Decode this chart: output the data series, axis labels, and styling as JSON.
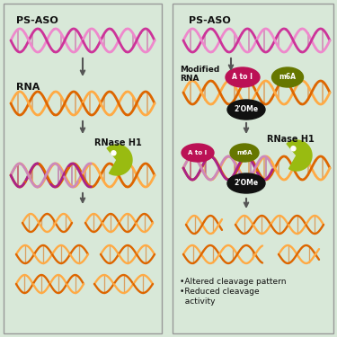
{
  "bg_color": "#d8e8d8",
  "border_color": "#999999",
  "arrow_color": "#555555",
  "ps_aso_c1": "#cc3399",
  "ps_aso_c2": "#ee88cc",
  "rna_c1": "#dd6600",
  "rna_c2": "#ffaa44",
  "hybrid_c1": "#aa2288",
  "hybrid_c2": "#cc88bb",
  "rnase_color": "#99bb11",
  "atoi_color": "#bb1155",
  "m6a_color": "#667700",
  "ome2_color": "#111111",
  "text_color": "#111111",
  "label_psaso": "PS-ASO",
  "label_rna": "RNA",
  "label_rnase": "RNase H1",
  "label_modified": "Modified\nRNA",
  "label_atoi": "A to I",
  "label_m6a": "m6A",
  "label_2ome": "2'OMe",
  "bullet1": "•Altered cleavage pattern",
  "bullet2": "•Reduced cleavage\n  activity"
}
